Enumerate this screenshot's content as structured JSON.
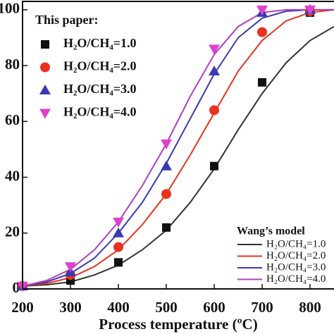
{
  "chart_data": {
    "type": "line",
    "xlabel": "Process temperature (ºC)",
    "xlim": [
      200,
      850
    ],
    "xticks": [
      200,
      300,
      400,
      500,
      600,
      700,
      800
    ],
    "ylim": [
      0,
      103
    ],
    "yticks": [
      0,
      20,
      40,
      60,
      80,
      100
    ],
    "legend_titles": [
      "This paper:",
      "Wang’s model"
    ],
    "series": [
      {
        "name": "H₂O/CH₄=1.0",
        "color": "#111111",
        "marker": "square",
        "x": [
          200,
          300,
          400,
          500,
          600,
          700,
          800
        ],
        "values": [
          1,
          3,
          9.5,
          22,
          44,
          74,
          99
        ]
      },
      {
        "name": "H₂O/CH₄=2.0",
        "color": "#e8321e",
        "marker": "circle",
        "x": [
          200,
          300,
          400,
          500,
          600,
          700,
          800
        ],
        "values": [
          1,
          5,
          15,
          34,
          64,
          92,
          99.5
        ]
      },
      {
        "name": "H₂O/CH₄=3.0",
        "color": "#3a3ab0",
        "marker": "triangle-up",
        "x": [
          200,
          300,
          400,
          500,
          600,
          700,
          800
        ],
        "values": [
          1,
          6,
          20,
          44,
          78,
          99,
          100
        ]
      },
      {
        "name": "H₂O/CH₄=4.0",
        "color": "#e040d0",
        "marker": "triangle-down",
        "x": [
          200,
          300,
          400,
          500,
          600,
          700,
          800
        ],
        "values": [
          1,
          8,
          24,
          52,
          86,
          100,
          100
        ]
      },
      {
        "name": "H₂O/CH₄=1.0",
        "color": "#333333",
        "marker": "line",
        "x": [
          200,
          250,
          300,
          350,
          400,
          450,
          500,
          550,
          600,
          650,
          700,
          750,
          800,
          850
        ],
        "values": [
          1,
          1.5,
          2.5,
          5,
          8.5,
          14,
          21,
          31,
          43,
          57,
          70,
          81,
          89,
          94
        ]
      },
      {
        "name": "H₂O/CH₄=2.0",
        "color": "#e8321e",
        "marker": "line",
        "x": [
          200,
          250,
          300,
          350,
          400,
          450,
          500,
          550,
          600,
          650,
          700,
          750,
          800,
          850
        ],
        "values": [
          1,
          2,
          4,
          8,
          14,
          23,
          34,
          48,
          63,
          78,
          89,
          96,
          99,
          100
        ]
      },
      {
        "name": "H₂O/CH₄=3.0",
        "color": "#3a3ab0",
        "marker": "line",
        "x": [
          200,
          250,
          300,
          350,
          400,
          450,
          500,
          550,
          600,
          650,
          700,
          750,
          800,
          850
        ],
        "values": [
          1,
          2.5,
          5.5,
          11,
          20,
          31,
          45,
          61,
          77,
          90,
          97,
          99.5,
          100,
          100
        ]
      },
      {
        "name": "H₂O/CH₄=4.0",
        "color": "#b040c0",
        "marker": "line",
        "x": [
          200,
          250,
          300,
          350,
          400,
          450,
          500,
          550,
          600,
          650,
          700,
          750,
          800,
          850
        ],
        "values": [
          1,
          3,
          7,
          14,
          24,
          37,
          52,
          69,
          84,
          94,
          99,
          100,
          100,
          100
        ]
      }
    ]
  }
}
